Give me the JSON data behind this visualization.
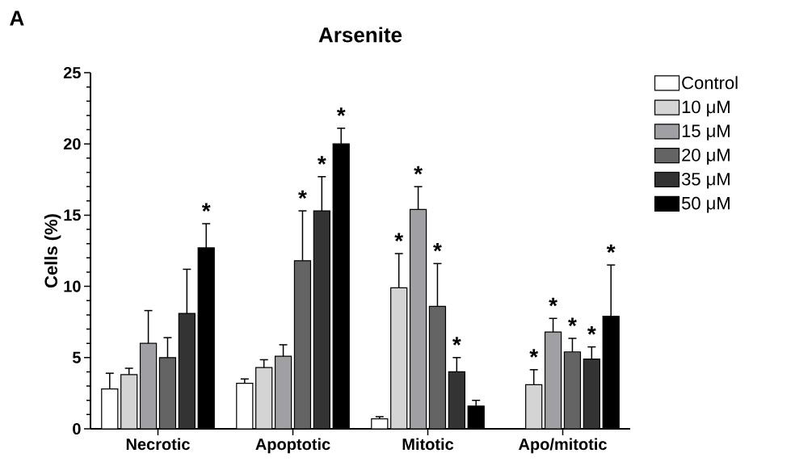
{
  "chart_data": {
    "type": "bar",
    "title": "Arsenite",
    "ylabel": "Cells (%)",
    "annotations": [
      "A"
    ],
    "categories": [
      "Necrotic",
      "Apoptotic",
      "Mitotic",
      "Apo/mitotic"
    ],
    "ylim": [
      0,
      25
    ],
    "yticks": [
      0,
      5,
      10,
      15,
      20,
      25
    ],
    "legend": "right",
    "series": [
      {
        "name": "Control",
        "color": "#ffffff",
        "values": [
          2.8,
          3.2,
          0.7,
          null
        ],
        "errors": [
          [
            2.8,
            3.9
          ],
          [
            3.2,
            3.5
          ],
          [
            0.7,
            0.85
          ],
          null
        ],
        "value_labels": [
          null,
          null,
          null,
          null
        ]
      },
      {
        "name": "10 μM",
        "color": "#d4d4d4",
        "values": [
          3.8,
          4.3,
          9.9,
          3.1
        ],
        "errors": [
          [
            3.8,
            4.25
          ],
          [
            4.3,
            4.85
          ],
          [
            9.9,
            12.3
          ],
          [
            3.1,
            4.15
          ]
        ],
        "value_labels": [
          null,
          null,
          "*",
          "*"
        ]
      },
      {
        "name": "15 μM",
        "color": "#a0a0a4",
        "values": [
          6.0,
          5.1,
          15.4,
          6.8
        ],
        "errors": [
          [
            6.0,
            8.3
          ],
          [
            5.1,
            5.9
          ],
          [
            15.4,
            17.0
          ],
          [
            6.8,
            7.75
          ]
        ],
        "value_labels": [
          null,
          null,
          "*",
          "*"
        ]
      },
      {
        "name": "20 μM",
        "color": "#646464",
        "values": [
          5.0,
          11.8,
          8.6,
          5.4
        ],
        "errors": [
          [
            5.0,
            6.4
          ],
          [
            11.8,
            15.3
          ],
          [
            8.6,
            11.6
          ],
          [
            5.4,
            6.35
          ]
        ],
        "value_labels": [
          null,
          "*",
          "*",
          "*"
        ]
      },
      {
        "name": "35 μM",
        "color": "#333333",
        "values": [
          8.1,
          15.3,
          4.0,
          4.9
        ],
        "errors": [
          [
            8.1,
            11.2
          ],
          [
            15.3,
            17.7
          ],
          [
            4.0,
            5.0
          ],
          [
            4.9,
            5.75
          ]
        ],
        "value_labels": [
          null,
          "*",
          "*",
          "*"
        ]
      },
      {
        "name": "50 μM",
        "color": "#000000",
        "values": [
          12.7,
          20.0,
          1.6,
          7.9
        ],
        "errors": [
          [
            12.7,
            14.4
          ],
          [
            20.0,
            21.1
          ],
          [
            1.6,
            2.0
          ],
          [
            7.9,
            11.5
          ]
        ],
        "value_labels": [
          "*",
          "*",
          null,
          "*"
        ]
      }
    ]
  }
}
